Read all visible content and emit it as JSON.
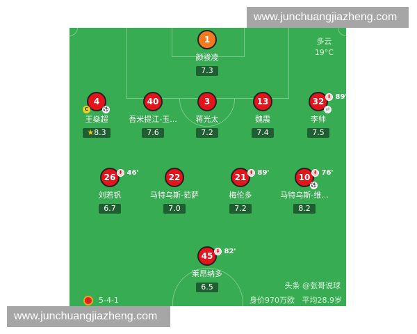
{
  "weather": {
    "condition": "多云",
    "temperature": "19°C"
  },
  "formation": "5-4-1",
  "summary": "身价970万欧   平均28.9岁",
  "source_watermark": "头条 @张哥说球",
  "url_watermark_top": "www.junchuangjiazheng.com",
  "url_watermark_bottom": "www.junchuangjiazheng.com",
  "colors": {
    "pitch": "#37ac52",
    "player": "#e3141b",
    "goalkeeper": "#f47a20",
    "rating_bg": "#1e5e30"
  },
  "players": [
    {
      "number": "1",
      "name": "颜骏凌",
      "rating": "7.3"
    },
    {
      "number": "4",
      "name": "王燊超",
      "rating": "8.3",
      "captain": "C",
      "goal": true,
      "star": true
    },
    {
      "number": "40",
      "name": "吾米提江-玉...",
      "rating": "7.6"
    },
    {
      "number": "3",
      "name": "蒋光太",
      "rating": "7.2"
    },
    {
      "number": "13",
      "name": "魏震",
      "rating": "7.4"
    },
    {
      "number": "32",
      "name": "李帅",
      "rating": "7.5",
      "sub_minute": "89'"
    },
    {
      "number": "26",
      "name": "刘若钒",
      "rating": "6.7",
      "sub_minute": "46'"
    },
    {
      "number": "22",
      "name": "马特乌斯-茹萨",
      "rating": "7.0"
    },
    {
      "number": "21",
      "name": "梅伦多",
      "rating": "7.2",
      "sub_minute": "89'"
    },
    {
      "number": "10",
      "name": "马特乌斯-维...",
      "rating": "8.2",
      "sub_minute": "76'",
      "goal": true
    },
    {
      "number": "45",
      "name": "莱昂纳多",
      "rating": "6.5",
      "sub_minute": "82'"
    }
  ]
}
